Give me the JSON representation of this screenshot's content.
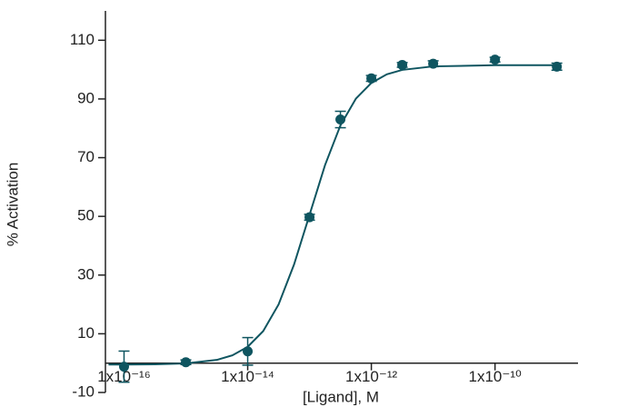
{
  "chart_data": {
    "type": "scatter",
    "xlabel": "[Ligand], M",
    "ylabel": "% Activation",
    "xscale": "log",
    "xlim": [
      5e-17,
      2.2e-09
    ],
    "xticks": [
      {
        "value": 1e-16,
        "label": "1x10⁻¹⁶"
      },
      {
        "value": 1e-14,
        "label": "1x10⁻¹⁴"
      },
      {
        "value": 1e-12,
        "label": "1x10⁻¹²"
      },
      {
        "value": 1e-10,
        "label": "1x10⁻¹⁰"
      }
    ],
    "ylim": [
      -10,
      120
    ],
    "yticks": [
      -10,
      10,
      30,
      50,
      70,
      90,
      110
    ],
    "color": "#0f5560",
    "series": [
      {
        "x": [
          1e-16,
          1e-15,
          1e-14,
          1e-13,
          3.16e-13,
          1e-12,
          3.16e-12,
          1e-11,
          1e-10,
          1e-09
        ],
        "values": [
          -1.2,
          0.3,
          4,
          49.7,
          83,
          97,
          101.6,
          102,
          103.4,
          101
        ],
        "errors": [
          5.3,
          0.8,
          4.7,
          1,
          2.8,
          1,
          0.8,
          1,
          0.8,
          1.2
        ]
      }
    ],
    "fit": {
      "x": [
        5.62e-17,
        1e-16,
        3.16e-16,
        1e-15,
        3.16e-15,
        5.62e-15,
        1e-14,
        1.78e-14,
        3.16e-14,
        5.62e-14,
        1e-13,
        1.78e-13,
        3.16e-13,
        5.62e-13,
        1e-12,
        1.78e-12,
        3.16e-12,
        1e-11,
        1e-10,
        1e-09
      ],
      "values": [
        -0.49,
        -0.47,
        -0.4,
        -0.1,
        1.09,
        2.63,
        5.55,
        10.9,
        20,
        33.6,
        50.5,
        67.45,
        81,
        90.1,
        95.45,
        98.4,
        99.9,
        101.1,
        101.5,
        101.5
      ]
    }
  }
}
